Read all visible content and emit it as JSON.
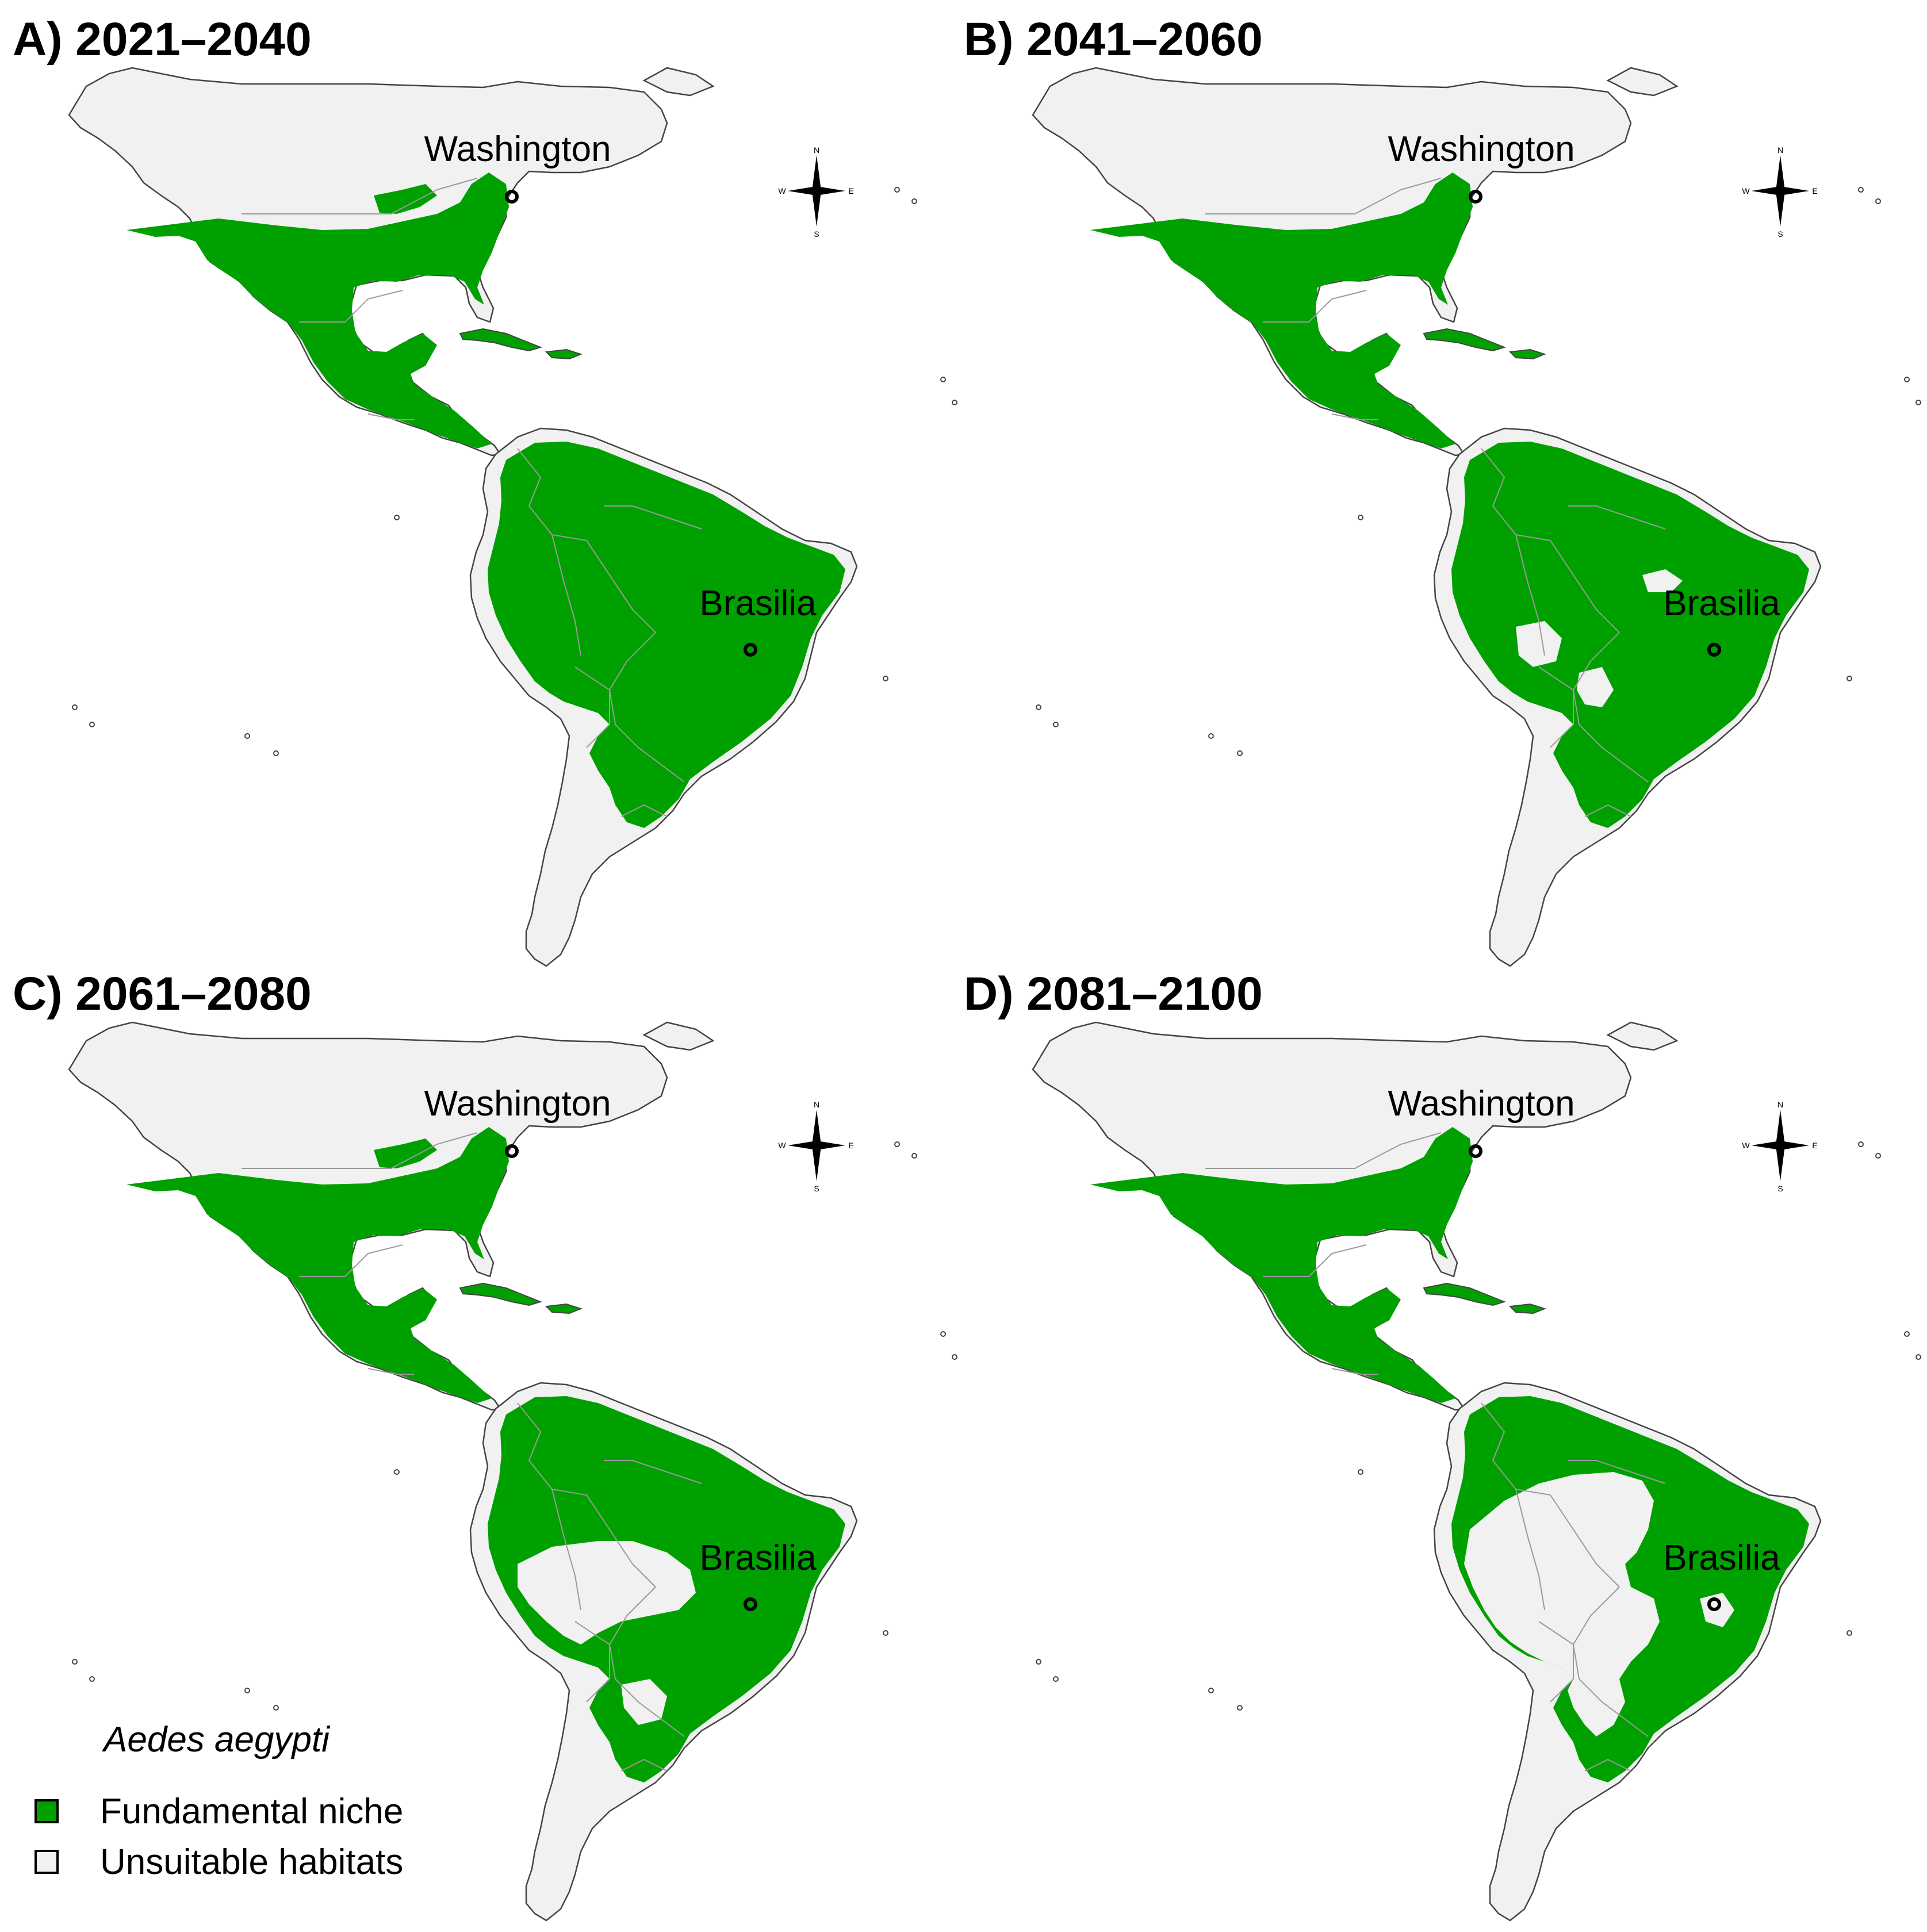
{
  "colors": {
    "fundamental_niche": "#00a000",
    "unsuitable_habitats": "#f1f1f1",
    "border": "#9a9a9a",
    "coast": "#444444",
    "marker": "#000000"
  },
  "panels": [
    {
      "id": "A",
      "title": "A) 2021–2040",
      "niche_extent": "north-america-wide"
    },
    {
      "id": "B",
      "title": "B) 2041–2060",
      "niche_extent": "andes-gaps"
    },
    {
      "id": "C",
      "title": "C) 2061–2080",
      "niche_extent": "amazon-gaps"
    },
    {
      "id": "D",
      "title": "D) 2081–2100",
      "niche_extent": "amazon-large-gaps"
    }
  ],
  "cities": {
    "washington": "Washington",
    "brasilia": "Brasilia"
  },
  "compass": {
    "n": "N",
    "s": "S",
    "e": "E",
    "w": "W",
    "icon": "compass-rose-icon"
  },
  "legend": {
    "species": "Aedes aegypti",
    "items": [
      {
        "label": "Fundamental niche",
        "color": "#00a000"
      },
      {
        "label": "Unsuitable habitats",
        "color": "#f1f1f1"
      }
    ]
  }
}
